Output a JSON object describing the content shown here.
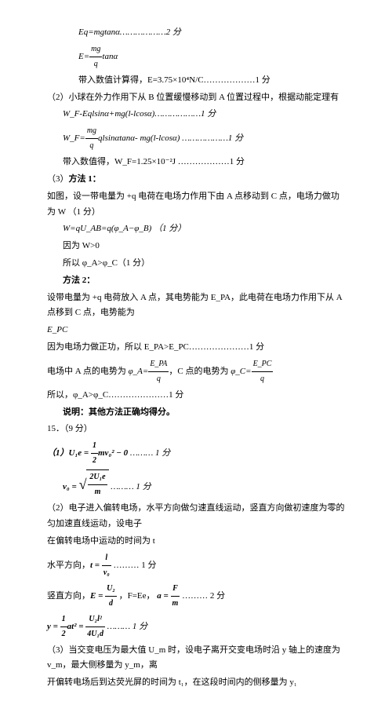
{
  "lines": {
    "l1": "Eq=mgtanα………………2 分",
    "l2a": "E=",
    "l2b_num": "mg",
    "l2b_den": "q",
    "l2c": "tanα",
    "l3": "带入数值计算得，E=3.75×10⁴N/C………………1 分",
    "l4": "（2）小球在外力作用下从 B 位置缓慢移动到 A 位置过程中，根据动能定理有",
    "l5": "W_F-Eqlsinα+mg(l-lcosα)………………1 分",
    "l6a": "W_F=",
    "l6_num": "mg",
    "l6_den": "q",
    "l6b": "qlsinαtanα- mg(l-lcosα) ………………1 分",
    "l7": "带入数值得，W_F=1.25×10⁻²J ………………1 分",
    "l8": "（3）方法 1：",
    "l9": "如图，设一带电量为 +q 电荷在电场力作用下由 A 点移动到 C 点，电场力做功为 W  （1 分）",
    "l10": "W=qU_AB=q(φ_A−φ_B)  （1 分）",
    "l11": "因为 W>0",
    "l12": "所以 φ_A>φ_C（1 分）",
    "l13": "方法 2：",
    "l14": "设带电量为 +q 电荷放入 A 点，其电势能为 E_PA，此电荷在电场力作用下从 A 点移到 C 点，电势能为",
    "l15": "E_PC",
    "l16": "因为电场力做正功，所以 E_PA>E_PC…………………1 分",
    "l17a": "电场中 A 点的电势为 ",
    "l17b_lhs": "φ_A=",
    "l17b_num": "E_PA",
    "l17b_den": "q",
    "l17c": "，C 点的电势为 ",
    "l17d_lhs": "φ_C=",
    "l17d_num": "E_PC",
    "l17d_den": "q",
    "l18": "所以，φ_A>φ_C…………………1 分",
    "l19": "说明：其他方法正确均得分。",
    "l20": "15．（9 分）",
    "l21a": "（1）",
    "l21b": "U₁e = ",
    "l21c_num": "1",
    "l21c_den": "2",
    "l21d": "mv₀² − 0",
    "l21e": " ……… 1 分",
    "l22a": "v₀ = ",
    "l22_sq_num": "2U₁e",
    "l22_sq_den": "m",
    "l22b": " ……… 1 分",
    "l23": "（2）电子进入偏转电场，水平方向做匀速直线运动，竖直方向做初速度为零的匀加速直线运动，设电子",
    "l24": "在偏转电场中运动的时间为 t",
    "l25a": "水平方向，",
    "l25b": "t = ",
    "l25_num": "l",
    "l25_den": "v₀",
    "l25c": " ……… 1 分",
    "l26a": "竖直方向，",
    "l26b": "E = ",
    "l26b_num": "U₂",
    "l26b_den": "d",
    "l26c": " ，F=Ee， ",
    "l26d": "a = ",
    "l26d_num": "F",
    "l26d_den": "m",
    "l26e": " ……… 2 分",
    "l27a": "y = ",
    "l27a_num": "1",
    "l27a_den": "2",
    "l27b": "at² = ",
    "l27b_num": "U₂l²",
    "l27b_den": "4U₁d",
    "l27c": " ……… 1 分",
    "l28": "（3）当交变电压为最大值 U_m 时，设电子离开交变电场时沿 y 轴上的速度为 v_m，最大侧移量为 y_m，离",
    "l29": "开偏转电场后到达荧光屏的时间为 t₁，在这段时间内的侧移量为 y₁"
  }
}
